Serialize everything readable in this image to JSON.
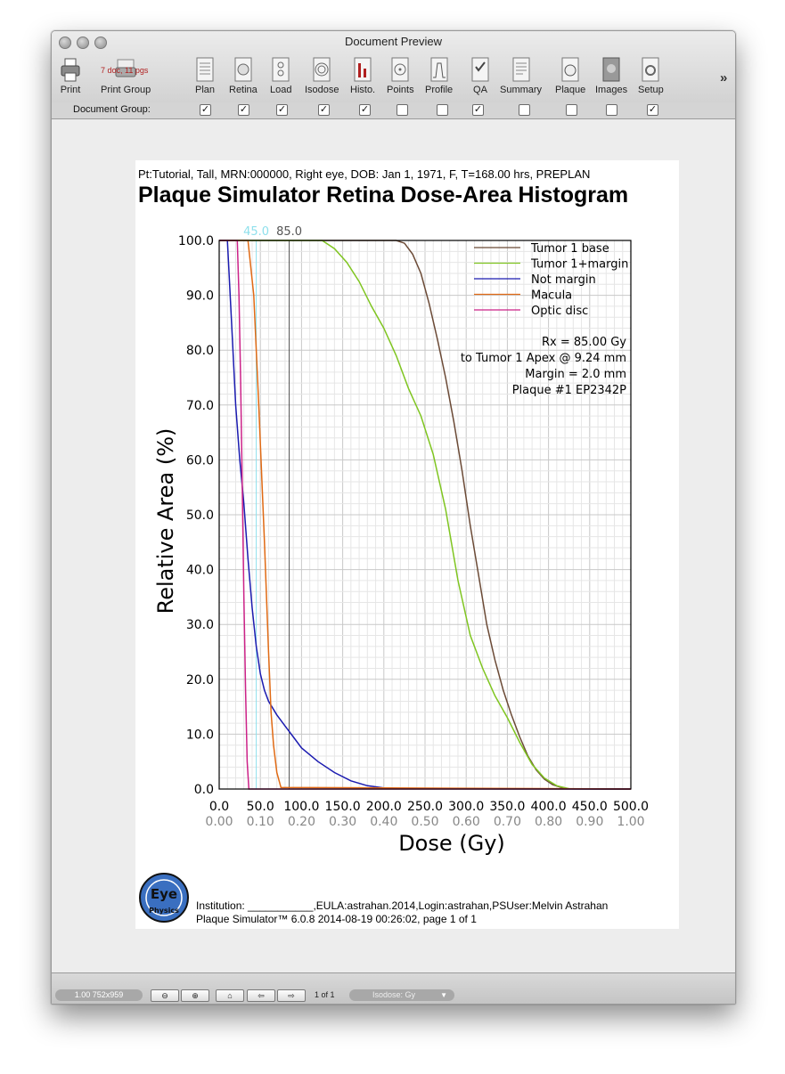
{
  "window": {
    "title": "Document Preview"
  },
  "toolbar": {
    "items": [
      {
        "label": "Print",
        "icon": "printer-icon"
      },
      {
        "label": "Print Group",
        "icon": "print-group-icon",
        "badge": "7 doc, 11 pgs"
      },
      {
        "label": "Plan",
        "icon": "plan-document-icon"
      },
      {
        "label": "Retina",
        "icon": "retina-icon"
      },
      {
        "label": "Load",
        "icon": "load-icon"
      },
      {
        "label": "Isodose",
        "icon": "isodose-icon"
      },
      {
        "label": "Histo.",
        "icon": "histogram-icon"
      },
      {
        "label": "Points",
        "icon": "points-icon"
      },
      {
        "label": "Profile",
        "icon": "profile-icon"
      },
      {
        "label": "QA",
        "icon": "qa-icon"
      },
      {
        "label": "Summary",
        "icon": "summary-icon"
      },
      {
        "label": "Plaque",
        "icon": "plaque-icon"
      },
      {
        "label": "Images",
        "icon": "images-icon"
      },
      {
        "label": "Setup",
        "icon": "setup-icon"
      }
    ],
    "more": "»"
  },
  "document_group": {
    "label": "Document Group:",
    "checked": [
      true,
      true,
      true,
      true,
      true,
      false,
      false,
      true,
      false,
      false,
      false,
      true
    ]
  },
  "page": {
    "patient_line": "Pt:Tutorial, Tall, MRN:000000, Right eye, DOB: Jan 1, 1971, F, T=168.00 hrs, PREPLAN",
    "title": "Plaque Simulator Retina Dose-Area Histogram",
    "footer_line1": "Institution: ___________,EULA:astrahan.2014,Login:astrahan,PSUser:Melvin Astrahan",
    "footer_line2": "Plaque Simulator™ 6.0.8 2014-08-19 00:26:02, page 1 of 1",
    "logo_text": "Eye Physics"
  },
  "chart_data": {
    "type": "line",
    "xlabel": "Dose (Gy)",
    "ylabel": "Relative Area (%)",
    "xlim": [
      0,
      500
    ],
    "ylim": [
      0,
      100
    ],
    "x_ticks": [
      "0.0",
      "50.0",
      "100.0",
      "150.0",
      "200.0",
      "250.0",
      "300.0",
      "350.0",
      "400.0",
      "450.0",
      "500.0"
    ],
    "x_ticks_fraction": [
      "0.00",
      "0.10",
      "0.20",
      "0.30",
      "0.40",
      "0.50",
      "0.60",
      "0.70",
      "0.80",
      "0.90",
      "1.00"
    ],
    "y_ticks": [
      "0.0",
      "10.0",
      "20.0",
      "30.0",
      "40.0",
      "50.0",
      "60.0",
      "70.0",
      "80.0",
      "90.0",
      "100.0"
    ],
    "grid": true,
    "legend_position": "top-right",
    "reference_lines": [
      {
        "label": "45.0",
        "x": 45,
        "color": "#8fe0ec"
      },
      {
        "label": "85.0",
        "x": 85,
        "color": "#555555"
      }
    ],
    "annotations": [
      "Rx = 85.00 Gy",
      "to Tumor 1 Apex @ 9.24 mm",
      "Margin = 2.0 mm",
      "Plaque #1 EP2342P"
    ],
    "series": [
      {
        "name": "Tumor 1 base",
        "color": "#6b4a36",
        "x": [
          0,
          215,
          225,
          235,
          245,
          255,
          265,
          275,
          285,
          295,
          305,
          315,
          325,
          335,
          345,
          355,
          365,
          375,
          385,
          395,
          405,
          415,
          425,
          500
        ],
        "y": [
          100,
          100,
          99.5,
          97.5,
          94,
          88.5,
          82,
          75,
          67,
          58,
          48,
          39,
          30,
          23.5,
          18,
          13.5,
          9.5,
          6,
          3.5,
          1.8,
          0.8,
          0.3,
          0.05,
          0
        ]
      },
      {
        "name": "Tumor 1+margin",
        "color": "#7fc520",
        "x": [
          0,
          125,
          140,
          155,
          170,
          185,
          200,
          215,
          230,
          245,
          260,
          275,
          290,
          305,
          320,
          335,
          350,
          365,
          380,
          395,
          410,
          425,
          500
        ],
        "y": [
          100,
          100,
          98.5,
          96,
          92.5,
          88,
          84,
          79,
          73,
          68,
          61,
          51,
          38,
          28,
          22,
          17,
          13,
          8.5,
          4.5,
          2,
          0.6,
          0.05,
          0
        ]
      },
      {
        "name": "Not margin",
        "color": "#1b1bb0",
        "x": [
          0,
          10,
          15,
          20,
          25,
          30,
          35,
          40,
          45,
          50,
          55,
          60,
          70,
          80,
          90,
          100,
          120,
          140,
          160,
          180,
          200,
          230,
          500
        ],
        "y": [
          100,
          100,
          85,
          70,
          60,
          52,
          42,
          33,
          26,
          21,
          18,
          16,
          13.5,
          11.5,
          9.5,
          7.5,
          5,
          3,
          1.5,
          0.6,
          0.2,
          0.05,
          0
        ]
      },
      {
        "name": "Macula",
        "color": "#e06a14",
        "x": [
          0,
          35,
          42,
          48,
          55,
          60,
          63,
          66,
          70,
          75,
          500
        ],
        "y": [
          100,
          100,
          90,
          70,
          45,
          25,
          14,
          8,
          3,
          0.3,
          0
        ]
      },
      {
        "name": "Optic disc",
        "color": "#cc2288",
        "x": [
          0,
          22,
          24,
          26,
          28,
          30,
          32,
          34,
          36,
          500
        ],
        "y": [
          100,
          100,
          90,
          75,
          55,
          35,
          18,
          5,
          0,
          0
        ]
      }
    ]
  },
  "statusbar": {
    "zoom": "1.00 752x959",
    "page_count": "1 of 1",
    "units": "Isodose: Gy",
    "unit_arrow": "▼"
  }
}
